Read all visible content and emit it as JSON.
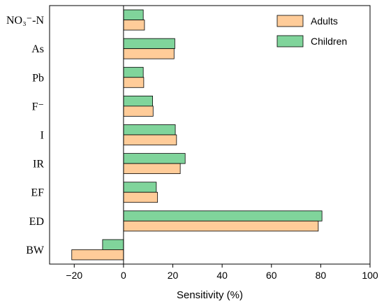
{
  "chart_data": {
    "type": "bar",
    "orientation": "horizontal",
    "categories": [
      "NO₃⁻-N",
      "As",
      "Pb",
      "F⁻",
      "I",
      "IR",
      "EF",
      "ED",
      "BW"
    ],
    "series": [
      {
        "name": "Adults",
        "color": "#ffcc99",
        "values": [
          8.5,
          20.5,
          8.2,
          12,
          21.5,
          23,
          13.8,
          79,
          -21
        ]
      },
      {
        "name": "Children",
        "color": "#80d49b",
        "values": [
          8,
          20.8,
          8,
          11.8,
          21,
          25,
          13.3,
          80.5,
          -8.5
        ]
      }
    ],
    "xlabel": "Sensitivity (%)",
    "xlim": [
      -30,
      100
    ],
    "xticks": [
      -20,
      0,
      20,
      40,
      60,
      80,
      100
    ],
    "tick_labels": [
      "−20",
      "0",
      "20",
      "40",
      "60",
      "80",
      "100"
    ],
    "grid": false,
    "legend_position": "top-right"
  }
}
